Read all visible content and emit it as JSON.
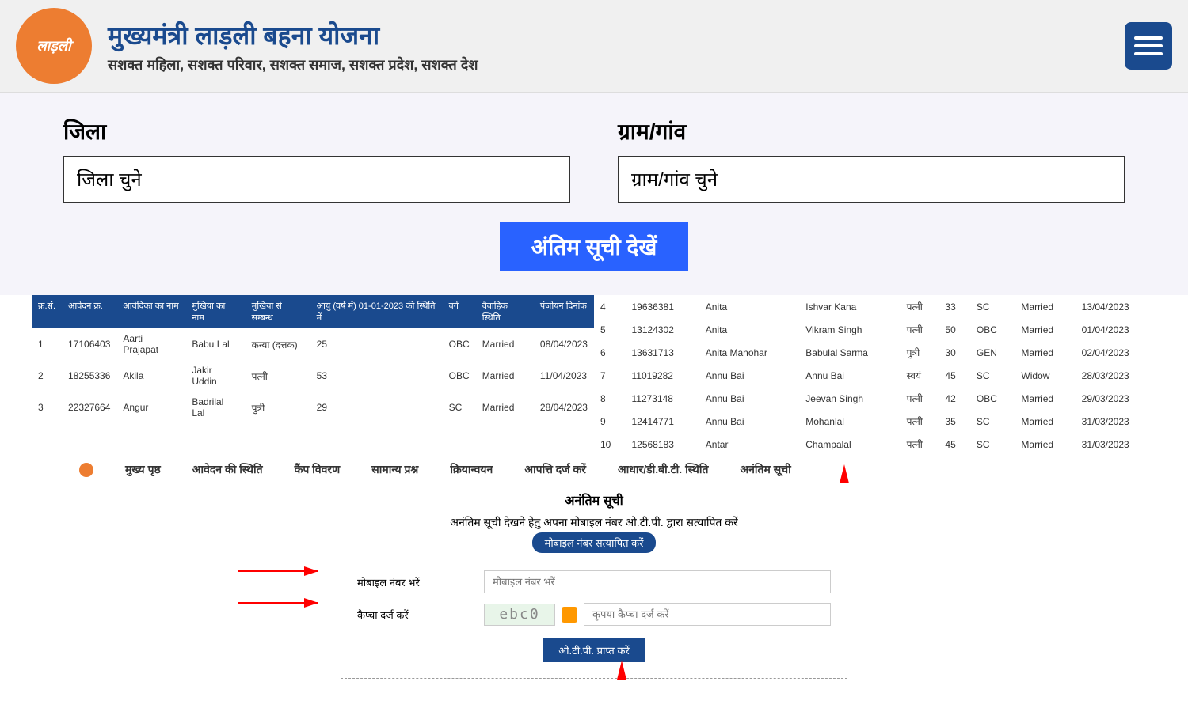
{
  "header": {
    "logo_text": "लाड़ली",
    "main_title": "मुख्यमंत्री लाड़ली बहना योजना",
    "sub_title": "सशक्त महिला, सशक्त परिवार, सशक्त समाज, सशक्त प्रदेश, सशक्त देश"
  },
  "filters": {
    "district_label": "जिला",
    "district_placeholder": "जिला चुने",
    "village_label": "ग्राम/गांव",
    "village_placeholder": "ग्राम/गांव चुने",
    "view_button": "अंतिम सूची देखें"
  },
  "table_headers": {
    "sno": "क्र.सं.",
    "app_no": "आवेदन क्र.",
    "applicant": "आवेदिका का नाम",
    "head": "मुखिया का नाम",
    "relation": "मुखिया से सम्बन्ध",
    "age": "आयु (वर्ष में) 01-01-2023 की स्थिति में",
    "category": "वर्ग",
    "marital": "वैवाहिक स्थिति",
    "reg_date": "पंजीयन दिनांक"
  },
  "rows_left": [
    {
      "sno": "1",
      "app": "17106403",
      "name": "Aarti Prajapat",
      "head": "Babu Lal",
      "rel": "कन्या (दत्तक)",
      "age": "25",
      "cat": "OBC",
      "mar": "Married",
      "date": "08/04/2023"
    },
    {
      "sno": "2",
      "app": "18255336",
      "name": "Akila",
      "head": "Jakir Uddin",
      "rel": "पत्नी",
      "age": "53",
      "cat": "OBC",
      "mar": "Married",
      "date": "11/04/2023"
    },
    {
      "sno": "3",
      "app": "22327664",
      "name": "Angur",
      "head": "Badrilal Lal",
      "rel": "पुत्री",
      "age": "29",
      "cat": "SC",
      "mar": "Married",
      "date": "28/04/2023"
    }
  ],
  "rows_right": [
    {
      "sno": "4",
      "app": "19636381",
      "name": "Anita",
      "head": "Ishvar Kana",
      "rel": "पत्नी",
      "age": "33",
      "cat": "SC",
      "mar": "Married",
      "date": "13/04/2023"
    },
    {
      "sno": "5",
      "app": "13124302",
      "name": "Anita",
      "head": "Vikram Singh",
      "rel": "पत्नी",
      "age": "50",
      "cat": "OBC",
      "mar": "Married",
      "date": "01/04/2023"
    },
    {
      "sno": "6",
      "app": "13631713",
      "name": "Anita Manohar",
      "head": "Babulal Sarma",
      "rel": "पुत्री",
      "age": "30",
      "cat": "GEN",
      "mar": "Married",
      "date": "02/04/2023"
    },
    {
      "sno": "7",
      "app": "11019282",
      "name": "Annu Bai",
      "head": "Annu Bai",
      "rel": "स्वयं",
      "age": "45",
      "cat": "SC",
      "mar": "Widow",
      "date": "28/03/2023"
    },
    {
      "sno": "8",
      "app": "11273148",
      "name": "Annu Bai",
      "head": "Jeevan Singh",
      "rel": "पत्नी",
      "age": "42",
      "cat": "OBC",
      "mar": "Married",
      "date": "29/03/2023"
    },
    {
      "sno": "9",
      "app": "12414771",
      "name": "Annu Bai",
      "head": "Mohanlal",
      "rel": "पत्नी",
      "age": "35",
      "cat": "SC",
      "mar": "Married",
      "date": "31/03/2023"
    },
    {
      "sno": "10",
      "app": "12568183",
      "name": "Antar",
      "head": "Champalal",
      "rel": "पत्नी",
      "age": "45",
      "cat": "SC",
      "mar": "Married",
      "date": "31/03/2023"
    }
  ],
  "nav": {
    "items": [
      "मुख्य पृष्ठ",
      "आवेदन की स्थिति",
      "कैंप विवरण",
      "सामान्य प्रश्न",
      "क्रियान्वयन",
      "आपत्ति दर्ज करें",
      "आधार/डी.बी.टी. स्थिति",
      "अनंतिम सूची"
    ]
  },
  "form": {
    "title": "अनंतिम सूची",
    "subtitle": "अनंतिम सूची देखने हेतु अपना मोबाइल नंबर ओ.टी.पी. द्वारा सत्यापित करें",
    "badge": "मोबाइल नंबर सत्यापित करें",
    "mobile_label": "मोबाइल नंबर भरें",
    "mobile_placeholder": "मोबाइल नंबर भरें",
    "captcha_label": "कैप्चा दर्ज करें",
    "captcha_value": "ebc0",
    "captcha_placeholder": "कृपया कैप्चा दर्ज करें",
    "submit": "ओ.टी.पी. प्राप्त करें"
  },
  "colors": {
    "primary_blue": "#1a4a8e",
    "accent_blue": "#2962ff",
    "orange": "#ed7d31",
    "red_arrow": "#ff0000",
    "bg_light": "#f5f4fa"
  }
}
